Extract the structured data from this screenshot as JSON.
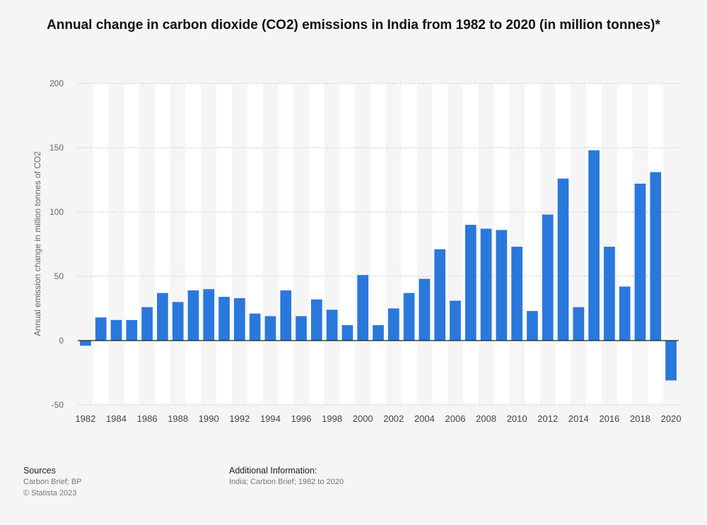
{
  "title": "Annual change in carbon dioxide (CO2) emissions in India from 1982 to 2020 (in million tonnes)*",
  "footer": {
    "sources_heading": "Sources",
    "sources_line1": "Carbon Brief; BP",
    "sources_line2": "© Statista 2023",
    "info_heading": "Additional Information:",
    "info_line1": "India; Carbon Brief; 1982 to 2020"
  },
  "colors": {
    "bar": "#2a78dc",
    "band": "#ffffff",
    "grid": "#c8c8c8",
    "axis": "#222222"
  },
  "chart_data": {
    "type": "bar",
    "title": "Annual change in carbon dioxide (CO2) emissions in India from 1982 to 2020 (in million tonnes)*",
    "xlabel": "",
    "ylabel": "Annual emission change in million tonnes of CO2",
    "ylim": [
      -50,
      200
    ],
    "yticks": [
      -50,
      0,
      50,
      100,
      150,
      200
    ],
    "grid": true,
    "categories": [
      "1982",
      "1983",
      "1984",
      "1985",
      "1986",
      "1987",
      "1988",
      "1989",
      "1990",
      "1991",
      "1992",
      "1993",
      "1994",
      "1995",
      "1996",
      "1997",
      "1998",
      "1999",
      "2000",
      "2001",
      "2002",
      "2003",
      "2004",
      "2005",
      "2006",
      "2007",
      "2008",
      "2009",
      "2010",
      "2011",
      "2012",
      "2013",
      "2014",
      "2015",
      "2016",
      "2017",
      "2018",
      "2019",
      "2020"
    ],
    "xtick_labels": [
      "1982",
      "1984",
      "1986",
      "1988",
      "1990",
      "1992",
      "1994",
      "1996",
      "1998",
      "2000",
      "2002",
      "2004",
      "2006",
      "2008",
      "2010",
      "2012",
      "2014",
      "2016",
      "2018",
      "2020"
    ],
    "values": [
      -4,
      18,
      16,
      16,
      26,
      37,
      30,
      39,
      40,
      34,
      33,
      21,
      19,
      39,
      19,
      32,
      24,
      12,
      51,
      12,
      25,
      37,
      48,
      71,
      31,
      90,
      87,
      86,
      73,
      23,
      98,
      126,
      26,
      148,
      73,
      42,
      122,
      131,
      -31
    ]
  }
}
